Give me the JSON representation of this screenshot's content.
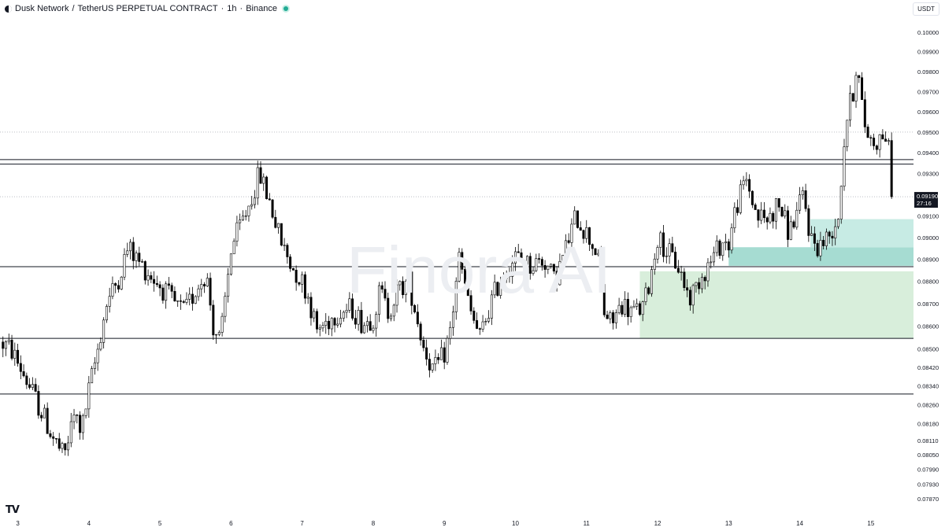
{
  "header": {
    "base": "Dusk Network",
    "separator": "/",
    "quote": "TetherUS PERPETUAL CONTRACT",
    "interval": "1h",
    "exchange": "Binance",
    "status_color": "#22ab94"
  },
  "currency_button": "USDT",
  "watermark": "Finora AI",
  "chart_data": {
    "type": "candlestick",
    "interval": "1h",
    "price_scale": "log",
    "ylim": [
      0.0782,
      0.1006
    ],
    "xlim": [
      2.75,
      15.6
    ],
    "y_ticks": [
      "0.10000",
      "0.09900",
      "0.09800",
      "0.09700",
      "0.09600",
      "0.09500",
      "0.09400",
      "0.09300",
      "0.09100",
      "0.09000",
      "0.08900",
      "0.08800",
      "0.08700",
      "0.08600",
      "0.08500",
      "0.08420",
      "0.08340",
      "0.08260",
      "0.08180",
      "0.08110",
      "0.08050",
      "0.07990",
      "0.07930",
      "0.07870"
    ],
    "x_ticks": [
      {
        "x": 3,
        "label": "3"
      },
      {
        "x": 4,
        "label": "4"
      },
      {
        "x": 5,
        "label": "5"
      },
      {
        "x": 6,
        "label": "6"
      },
      {
        "x": 7,
        "label": "7"
      },
      {
        "x": 8,
        "label": "8"
      },
      {
        "x": 9,
        "label": "9"
      },
      {
        "x": 10,
        "label": "10"
      },
      {
        "x": 11,
        "label": "11"
      },
      {
        "x": 12,
        "label": "12"
      },
      {
        "x": 13,
        "label": "13"
      },
      {
        "x": 14,
        "label": "14"
      },
      {
        "x": 15,
        "label": "15"
      }
    ],
    "last_price": {
      "value": 0.0919,
      "label": "0.09190",
      "countdown": "27:16",
      "color": "#131722"
    },
    "horizontal_lines": [
      {
        "price": 0.09367,
        "style": "solid"
      },
      {
        "price": 0.09345,
        "style": "solid"
      },
      {
        "price": 0.08866,
        "style": "solid"
      },
      {
        "price": 0.08546,
        "style": "solid"
      },
      {
        "price": 0.08305,
        "style": "solid"
      },
      {
        "price": 0.095,
        "style": "dotted"
      }
    ],
    "zones": [
      {
        "x_from": 11.75,
        "y_from": 0.08546,
        "y_to": 0.08845,
        "color": "#d8eedb"
      },
      {
        "x_from": 13.0,
        "y_from": 0.0887,
        "y_to": 0.08955,
        "color": "#a6dcd2"
      },
      {
        "x_from": 14.15,
        "y_from": 0.08955,
        "y_to": 0.09085,
        "color": "#c7ebe4"
      }
    ],
    "anchors": [
      [
        2.75,
        0.0853
      ],
      [
        2.9,
        0.085
      ],
      [
        3.1,
        0.0838
      ],
      [
        3.3,
        0.0825
      ],
      [
        3.5,
        0.0812
      ],
      [
        3.65,
        0.0804
      ],
      [
        3.8,
        0.0822
      ],
      [
        3.9,
        0.0815
      ],
      [
        4.0,
        0.0832
      ],
      [
        4.1,
        0.0846
      ],
      [
        4.25,
        0.087
      ],
      [
        4.4,
        0.088
      ],
      [
        4.55,
        0.0895
      ],
      [
        4.75,
        0.0887
      ],
      [
        5.0,
        0.0878
      ],
      [
        5.2,
        0.087
      ],
      [
        5.35,
        0.0866
      ],
      [
        5.5,
        0.0876
      ],
      [
        5.65,
        0.0884
      ],
      [
        5.75,
        0.086
      ],
      [
        5.85,
        0.0853
      ],
      [
        6.0,
        0.0895
      ],
      [
        6.25,
        0.0915
      ],
      [
        6.4,
        0.093
      ],
      [
        6.55,
        0.0916
      ],
      [
        6.7,
        0.0898
      ],
      [
        6.85,
        0.0887
      ],
      [
        7.0,
        0.088
      ],
      [
        7.1,
        0.0872
      ],
      [
        7.2,
        0.0858
      ],
      [
        7.35,
        0.0862
      ],
      [
        7.5,
        0.0866
      ],
      [
        7.7,
        0.0868
      ],
      [
        7.85,
        0.0861
      ],
      [
        8.0,
        0.0864
      ],
      [
        8.1,
        0.0876
      ],
      [
        8.2,
        0.0866
      ],
      [
        8.35,
        0.0876
      ],
      [
        8.5,
        0.088
      ],
      [
        8.6,
        0.0866
      ],
      [
        8.7,
        0.0852
      ],
      [
        8.85,
        0.084
      ],
      [
        9.0,
        0.0848
      ],
      [
        9.1,
        0.086
      ],
      [
        9.2,
        0.0892
      ],
      [
        9.35,
        0.0868
      ],
      [
        9.5,
        0.0855
      ],
      [
        9.65,
        0.087
      ],
      [
        9.8,
        0.0882
      ],
      [
        10.0,
        0.0891
      ],
      [
        10.2,
        0.0887
      ],
      [
        10.4,
        0.089
      ],
      [
        10.55,
        0.088
      ],
      [
        10.7,
        0.0894
      ],
      [
        10.85,
        0.091
      ],
      [
        11.0,
        0.0902
      ],
      [
        11.15,
        0.0893
      ],
      [
        11.25,
        0.0866
      ],
      [
        11.35,
        0.0861
      ],
      [
        11.5,
        0.087
      ],
      [
        11.65,
        0.0866
      ],
      [
        11.8,
        0.0868
      ],
      [
        11.9,
        0.0882
      ],
      [
        12.0,
        0.09
      ],
      [
        12.15,
        0.0893
      ],
      [
        12.3,
        0.0886
      ],
      [
        12.45,
        0.0872
      ],
      [
        12.6,
        0.0882
      ],
      [
        12.75,
        0.0889
      ],
      [
        12.9,
        0.0898
      ],
      [
        13.0,
        0.0897
      ],
      [
        13.1,
        0.0914
      ],
      [
        13.25,
        0.0927
      ],
      [
        13.4,
        0.091
      ],
      [
        13.55,
        0.0908
      ],
      [
        13.7,
        0.0916
      ],
      [
        13.85,
        0.0902
      ],
      [
        14.0,
        0.0915
      ],
      [
        14.05,
        0.092
      ],
      [
        14.15,
        0.09
      ],
      [
        14.25,
        0.0896
      ],
      [
        14.4,
        0.09
      ],
      [
        14.55,
        0.0911
      ],
      [
        14.6,
        0.0935
      ],
      [
        14.65,
        0.0955
      ],
      [
        14.75,
        0.097
      ],
      [
        14.8,
        0.0985
      ],
      [
        14.9,
        0.0955
      ],
      [
        15.0,
        0.0946
      ],
      [
        15.1,
        0.0946
      ],
      [
        15.2,
        0.095
      ],
      [
        15.28,
        0.0935
      ],
      [
        15.33,
        0.0919
      ]
    ],
    "colors": {
      "up": "#ffffff",
      "down": "#000000",
      "wick": "#000000",
      "border": "#000000"
    }
  }
}
